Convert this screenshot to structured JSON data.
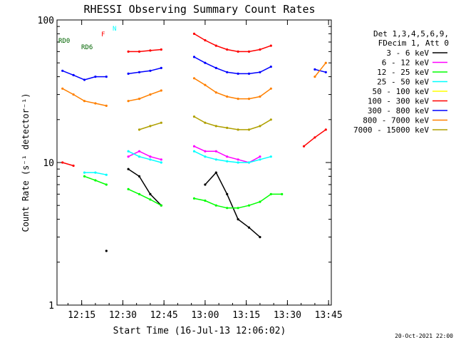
{
  "chart_data": {
    "type": "line",
    "title": "RHESSI Observing Summary Count Rates",
    "xlabel": "Start Time (16-Jul-13 12:06:02)",
    "ylabel": "Count Rate (s⁻¹ detector⁻¹)",
    "y_scale": "log",
    "ylim": [
      1,
      100
    ],
    "xlim": [
      "12:06",
      "13:46"
    ],
    "x_ticks": [
      "12:15",
      "12:30",
      "12:45",
      "13:00",
      "13:15",
      "13:30",
      "13:45"
    ],
    "y_ticks": [
      "1",
      "10",
      "100"
    ],
    "grid": false,
    "legend_position": "right",
    "legend_header": [
      "Det 1,3,4,5,6,9,",
      "FDecim 1, Att 0"
    ],
    "timestamp": "20-Oct-2021 22:00",
    "x": [
      "12:08",
      "12:12",
      "12:16",
      "12:20",
      "12:24",
      "12:28",
      "12:32",
      "12:36",
      "12:40",
      "12:44",
      "12:48",
      "12:52",
      "12:56",
      "13:00",
      "13:04",
      "13:08",
      "13:12",
      "13:16",
      "13:20",
      "13:24",
      "13:28",
      "13:32",
      "13:36",
      "13:40",
      "13:44"
    ],
    "series": [
      {
        "name": "3 - 6 keV",
        "color": "#000000",
        "values": [
          null,
          null,
          null,
          null,
          2.4,
          null,
          9,
          8,
          6,
          5,
          null,
          null,
          null,
          7,
          8.5,
          6,
          4,
          3.5,
          3,
          null,
          null,
          null,
          null,
          null,
          null
        ]
      },
      {
        "name": "6 - 12 keV",
        "color": "#ff00ff",
        "values": [
          null,
          null,
          null,
          null,
          null,
          null,
          11,
          12,
          11,
          10.5,
          null,
          null,
          13,
          12,
          12,
          11,
          10.5,
          10,
          11,
          null,
          null,
          null,
          null,
          null,
          null
        ]
      },
      {
        "name": "12 - 25 keV",
        "color": "#00ff00",
        "values": [
          null,
          null,
          8,
          7.5,
          7,
          null,
          6.5,
          6,
          5.5,
          5,
          null,
          null,
          5.6,
          5.4,
          5,
          4.8,
          4.8,
          5,
          5.3,
          6,
          6,
          null,
          null,
          null,
          null
        ]
      },
      {
        "name": "25 - 50 keV",
        "color": "#00ffff",
        "values": [
          null,
          null,
          8.5,
          8.5,
          8.2,
          null,
          12,
          11,
          10.5,
          10,
          null,
          null,
          12,
          11,
          10.5,
          10.2,
          10,
          10,
          10.5,
          11,
          null,
          null,
          null,
          null,
          null
        ]
      },
      {
        "name": "50 - 100 keV",
        "color": "#ffff00",
        "values": [
          null,
          null,
          null,
          null,
          null,
          null,
          null,
          null,
          null,
          null,
          null,
          null,
          null,
          null,
          null,
          null,
          null,
          null,
          null,
          null,
          null,
          null,
          null,
          null,
          null
        ]
      },
      {
        "name": "100 - 300 keV",
        "color": "#ff0000",
        "values": [
          10,
          9.5,
          null,
          null,
          null,
          null,
          60,
          60,
          61,
          62,
          null,
          null,
          80,
          72,
          66,
          62,
          60,
          60,
          62,
          66,
          null,
          null,
          13,
          15,
          17
        ]
      },
      {
        "name": "300 - 800 keV",
        "color": "#0000ff",
        "values": [
          44,
          41,
          38,
          40,
          40,
          null,
          42,
          43,
          44,
          46,
          null,
          null,
          55,
          50,
          46,
          43,
          42,
          42,
          43,
          47,
          null,
          null,
          null,
          45,
          43
        ]
      },
      {
        "name": "800 - 7000 keV",
        "color": "#ff8000",
        "values": [
          33,
          30,
          27,
          26,
          25,
          null,
          27,
          28,
          30,
          32,
          null,
          null,
          39,
          35,
          31,
          29,
          28,
          28,
          29,
          33,
          null,
          null,
          null,
          40,
          50
        ]
      },
      {
        "name": "7000 - 15000 keV",
        "color": "#b0a000",
        "values": [
          null,
          null,
          null,
          null,
          null,
          null,
          null,
          17,
          18,
          19,
          null,
          null,
          21,
          19,
          18,
          17.5,
          17,
          17,
          18,
          20,
          null,
          null,
          null,
          null,
          null
        ]
      }
    ],
    "annotations": {
      "markers": [
        "RD0",
        "RD6",
        "F",
        "N"
      ]
    }
  }
}
